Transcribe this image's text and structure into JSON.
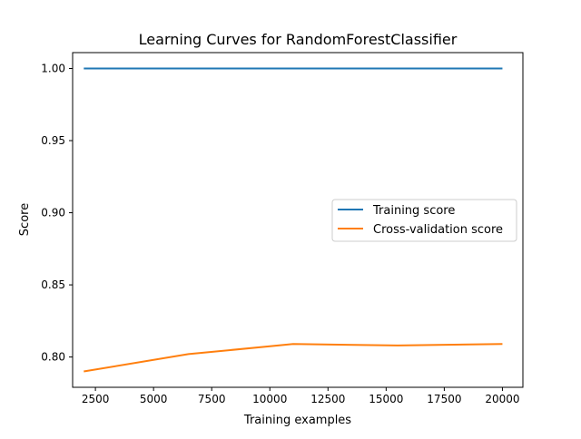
{
  "chart_data": {
    "type": "line",
    "title": "Learning Curves for RandomForestClassifier",
    "xlabel": "Training examples",
    "ylabel": "Score",
    "xlim": [
      1520,
      20880
    ],
    "ylim": [
      0.779,
      1.011
    ],
    "xticks": [
      2500,
      5000,
      7500,
      10000,
      12500,
      15000,
      17500,
      20000
    ],
    "xtick_labels": [
      "2500",
      "5000",
      "7500",
      "10000",
      "12500",
      "15000",
      "17500",
      "20000"
    ],
    "yticks": [
      0.8,
      0.85,
      0.9,
      0.95,
      1.0
    ],
    "ytick_labels": [
      "0.80",
      "0.85",
      "0.90",
      "0.95",
      "1.00"
    ],
    "grid": false,
    "legend_position": "center-right",
    "series": [
      {
        "name": "Training score",
        "color": "#1f77b4",
        "x": [
          2000,
          6500,
          11000,
          15500,
          20000
        ],
        "y": [
          1.0,
          1.0,
          1.0,
          1.0,
          1.0
        ]
      },
      {
        "name": "Cross-validation score",
        "color": "#ff7f0e",
        "x": [
          2000,
          6500,
          11000,
          15500,
          20000
        ],
        "y": [
          0.79,
          0.802,
          0.809,
          0.808,
          0.809
        ]
      }
    ]
  }
}
